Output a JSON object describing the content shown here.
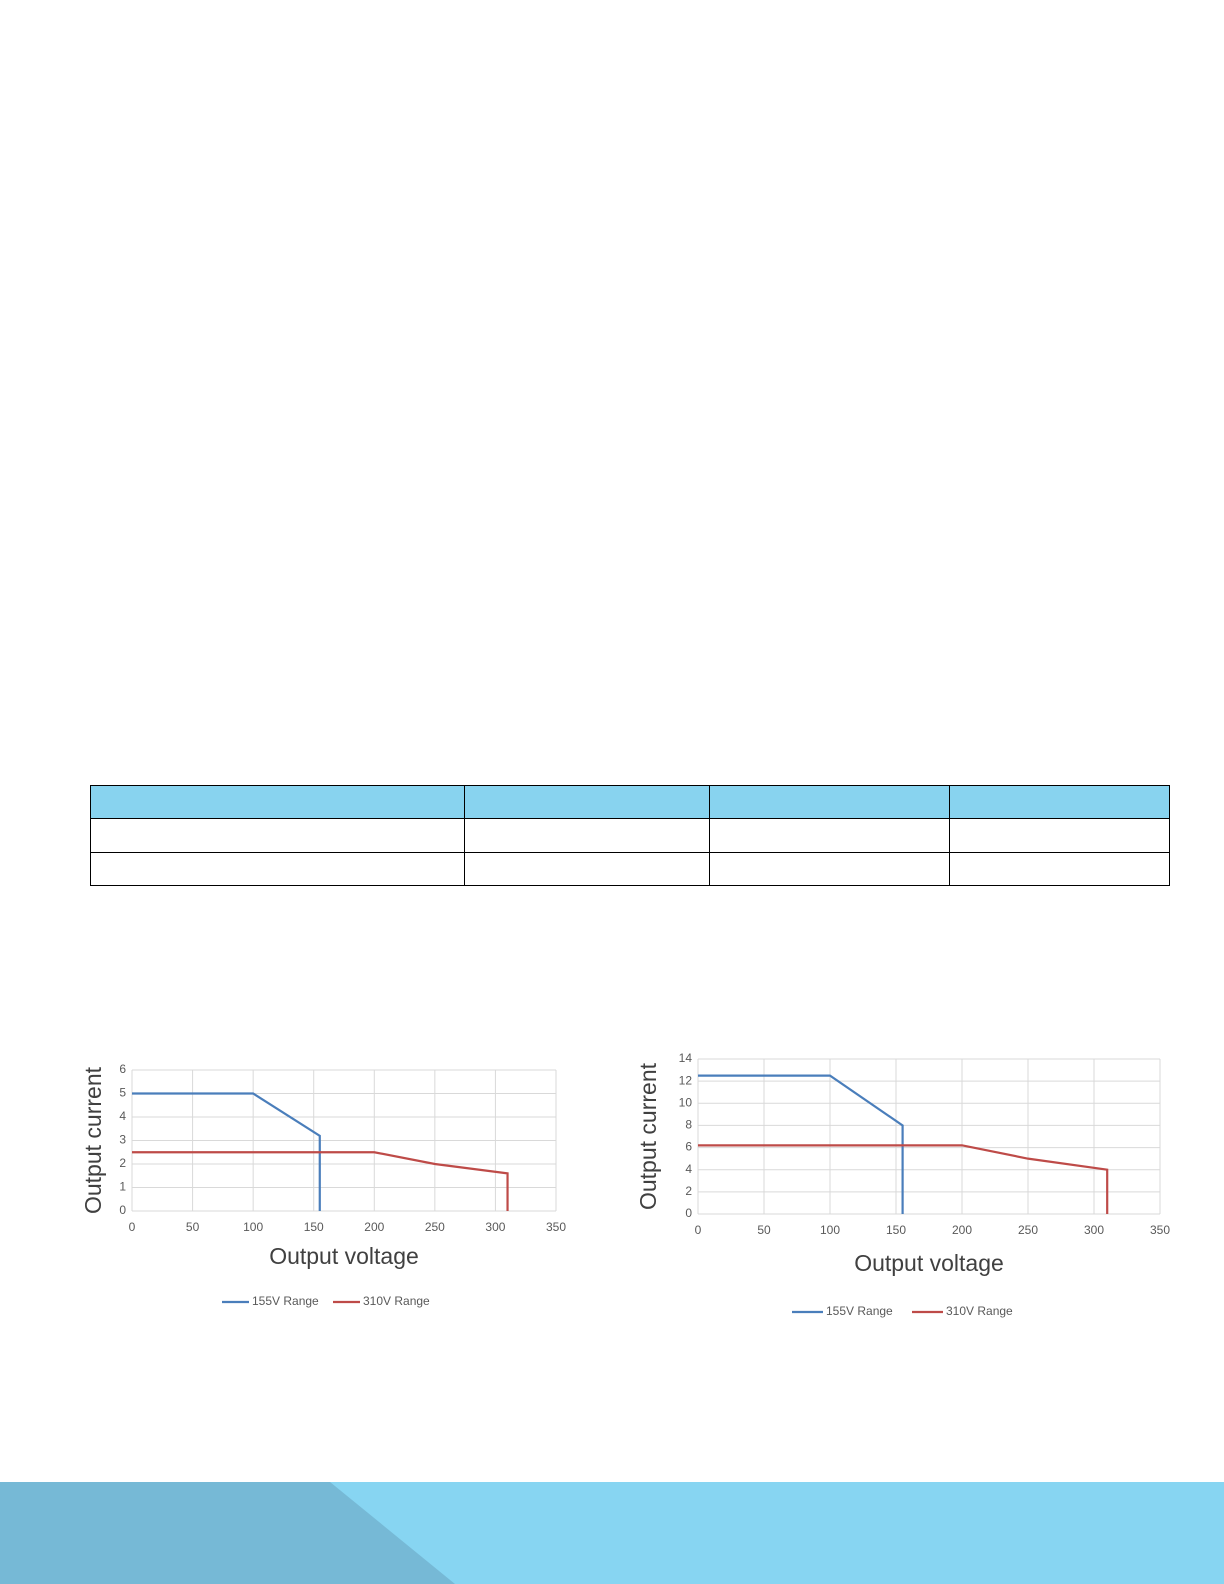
{
  "chart_data": [
    {
      "type": "line",
      "xlabel": "Output voltage",
      "ylabel": "Output current",
      "xlim": [
        0,
        350
      ],
      "xticks": [
        0,
        50,
        100,
        150,
        200,
        250,
        300,
        350
      ],
      "ylim": [
        0,
        6
      ],
      "yticks": [
        0,
        1,
        2,
        3,
        4,
        5,
        6
      ],
      "grid": true,
      "legend": "bottom",
      "series": [
        {
          "name": "155V Range",
          "color": "#4a7ebb",
          "x": [
            0,
            100,
            155,
            155
          ],
          "values": [
            5,
            5,
            3.2,
            0
          ]
        },
        {
          "name": "310V Range",
          "color": "#be4b48",
          "x": [
            0,
            200,
            250,
            310,
            310
          ],
          "values": [
            2.5,
            2.5,
            2,
            1.6,
            0
          ]
        }
      ]
    },
    {
      "type": "line",
      "xlabel": "Output voltage",
      "ylabel": "Output current",
      "xlim": [
        0,
        350
      ],
      "xticks": [
        0,
        50,
        100,
        150,
        200,
        250,
        300,
        350
      ],
      "ylim": [
        0,
        14
      ],
      "yticks": [
        0,
        2,
        4,
        6,
        8,
        10,
        12,
        14
      ],
      "grid": true,
      "legend": "bottom",
      "series": [
        {
          "name": "155V Range",
          "color": "#4a7ebb",
          "x": [
            0,
            100,
            155,
            155
          ],
          "values": [
            12.5,
            12.5,
            8,
            0
          ]
        },
        {
          "name": "310V Range",
          "color": "#be4b48",
          "x": [
            0,
            200,
            250,
            310,
            310
          ],
          "values": [
            6.2,
            6.2,
            5,
            4,
            0
          ]
        }
      ]
    }
  ]
}
